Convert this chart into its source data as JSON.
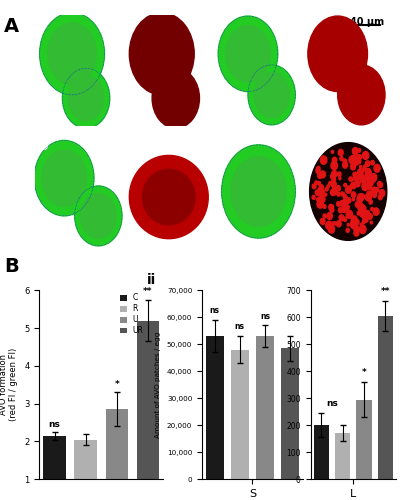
{
  "categories": [
    "C",
    "R",
    "U",
    "UR"
  ],
  "legend_colors": [
    "#1a1a1a",
    "#b0b0b0",
    "#888888",
    "#555555"
  ],
  "i_values": [
    2.15,
    2.05,
    2.85,
    5.2
  ],
  "i_errors": [
    0.1,
    0.15,
    0.45,
    0.55
  ],
  "i_ylabel": "AVO formation\n(red FI / green FI)",
  "i_ylim": [
    1,
    6
  ],
  "i_yticks": [
    1,
    2,
    3,
    4,
    5,
    6
  ],
  "S_values": [
    53000,
    48000,
    53000,
    48500
  ],
  "S_errors": [
    6000,
    5000,
    4000,
    4500
  ],
  "L_values": [
    200,
    170,
    295,
    605
  ],
  "L_errors": [
    45,
    30,
    65,
    55
  ],
  "ii_ylabel": "Amount of AVO patches / egg",
  "S_ylim": [
    0,
    70000
  ],
  "S_yticks": [
    0,
    10000,
    20000,
    30000,
    40000,
    50000,
    60000,
    70000
  ],
  "L_ylim": [
    0,
    700
  ],
  "L_yticks": [
    0,
    100,
    200,
    300,
    400,
    500,
    600,
    700
  ],
  "xlabel_S": "S",
  "xlabel_L": "L",
  "bg_color": "#ffffff",
  "scale_bar_text": "40 μm"
}
